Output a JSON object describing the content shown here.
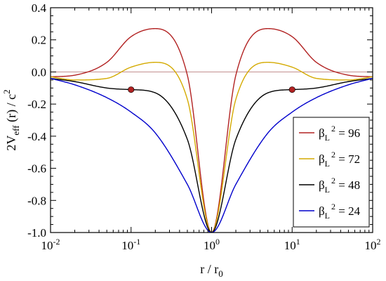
{
  "chart_data": {
    "type": "line",
    "title": "",
    "xlabel": {
      "base": "r / r",
      "sub": "0"
    },
    "ylabel": {
      "pre": "2V",
      "sub": "eff",
      "mid": " (r) / c",
      "sup": "2"
    },
    "xscale": "log",
    "xlim": [
      0.01,
      100
    ],
    "ylim": [
      -1.0,
      0.4
    ],
    "x_ticks": [
      {
        "value": 0.01,
        "base": "10",
        "exp": "-2"
      },
      {
        "value": 0.1,
        "base": "10",
        "exp": "-1"
      },
      {
        "value": 1,
        "base": "10",
        "exp": "0"
      },
      {
        "value": 10,
        "base": "10",
        "exp": "1"
      },
      {
        "value": 100,
        "base": "10",
        "exp": "2"
      }
    ],
    "y_ticks": [
      {
        "value": 0.4,
        "label": "0.4"
      },
      {
        "value": 0.2,
        "label": "0.2"
      },
      {
        "value": 0.0,
        "label": "0.0"
      },
      {
        "value": -0.2,
        "label": "-0.2"
      },
      {
        "value": -0.4,
        "label": "-0.4"
      },
      {
        "value": -0.6,
        "label": "-0.6"
      },
      {
        "value": -0.8,
        "label": "-0.8"
      },
      {
        "value": -1.0,
        "label": "-1.0"
      }
    ],
    "grid": false,
    "legend_position": "right",
    "zero_line": {
      "y": 0.0,
      "color": "#c08c8c"
    },
    "series": [
      {
        "name": {
          "base": "β",
          "sub": "L",
          "sup": "2",
          "rest": " = 96"
        },
        "beta_sq": 96,
        "color": "#b22222",
        "x": [
          0.01,
          0.02,
          0.05,
          0.1,
          0.2,
          0.5,
          1,
          2,
          5,
          10,
          20,
          50,
          100
        ],
        "y": [
          -0.03,
          -0.02,
          0.06,
          0.22,
          0.27,
          -0.02,
          -1.0,
          -0.02,
          0.27,
          0.22,
          0.06,
          -0.02,
          -0.03
        ]
      },
      {
        "name": {
          "base": "β",
          "sub": "L",
          "sup": "2",
          "rest": " = 72"
        },
        "beta_sq": 72,
        "color": "#d4aa00",
        "x": [
          0.01,
          0.02,
          0.05,
          0.1,
          0.2,
          0.5,
          1,
          2,
          5,
          10,
          20,
          50,
          100
        ],
        "y": [
          -0.03,
          -0.05,
          -0.04,
          0.03,
          0.06,
          -0.17,
          -1.0,
          -0.17,
          0.06,
          0.03,
          -0.04,
          -0.05,
          -0.03
        ]
      },
      {
        "name": {
          "base": "β",
          "sub": "L",
          "sup": "2",
          "rest": " = 48"
        },
        "beta_sq": 48,
        "color": "#000000",
        "x": [
          0.01,
          0.02,
          0.05,
          0.1,
          0.2,
          0.5,
          1,
          2,
          5,
          10,
          20,
          50,
          100
        ],
        "y": [
          -0.04,
          -0.06,
          -0.1,
          -0.11,
          -0.13,
          -0.42,
          -1.0,
          -0.42,
          -0.13,
          -0.11,
          -0.1,
          -0.06,
          -0.04
        ]
      },
      {
        "name": {
          "base": "β",
          "sub": "L",
          "sup": "2",
          "rest": " = 24"
        },
        "beta_sq": 24,
        "color": "#0000cc",
        "x": [
          0.01,
          0.02,
          0.05,
          0.1,
          0.2,
          0.5,
          1,
          2,
          5,
          10,
          20,
          50,
          100
        ],
        "y": [
          -0.04,
          -0.08,
          -0.16,
          -0.25,
          -0.38,
          -0.7,
          -1.0,
          -0.7,
          -0.38,
          -0.25,
          -0.16,
          -0.08,
          -0.04
        ]
      }
    ],
    "markers": [
      {
        "x": 0.1,
        "y": -0.11,
        "color": "#b22222"
      },
      {
        "x": 10,
        "y": -0.11,
        "color": "#b22222"
      }
    ]
  }
}
